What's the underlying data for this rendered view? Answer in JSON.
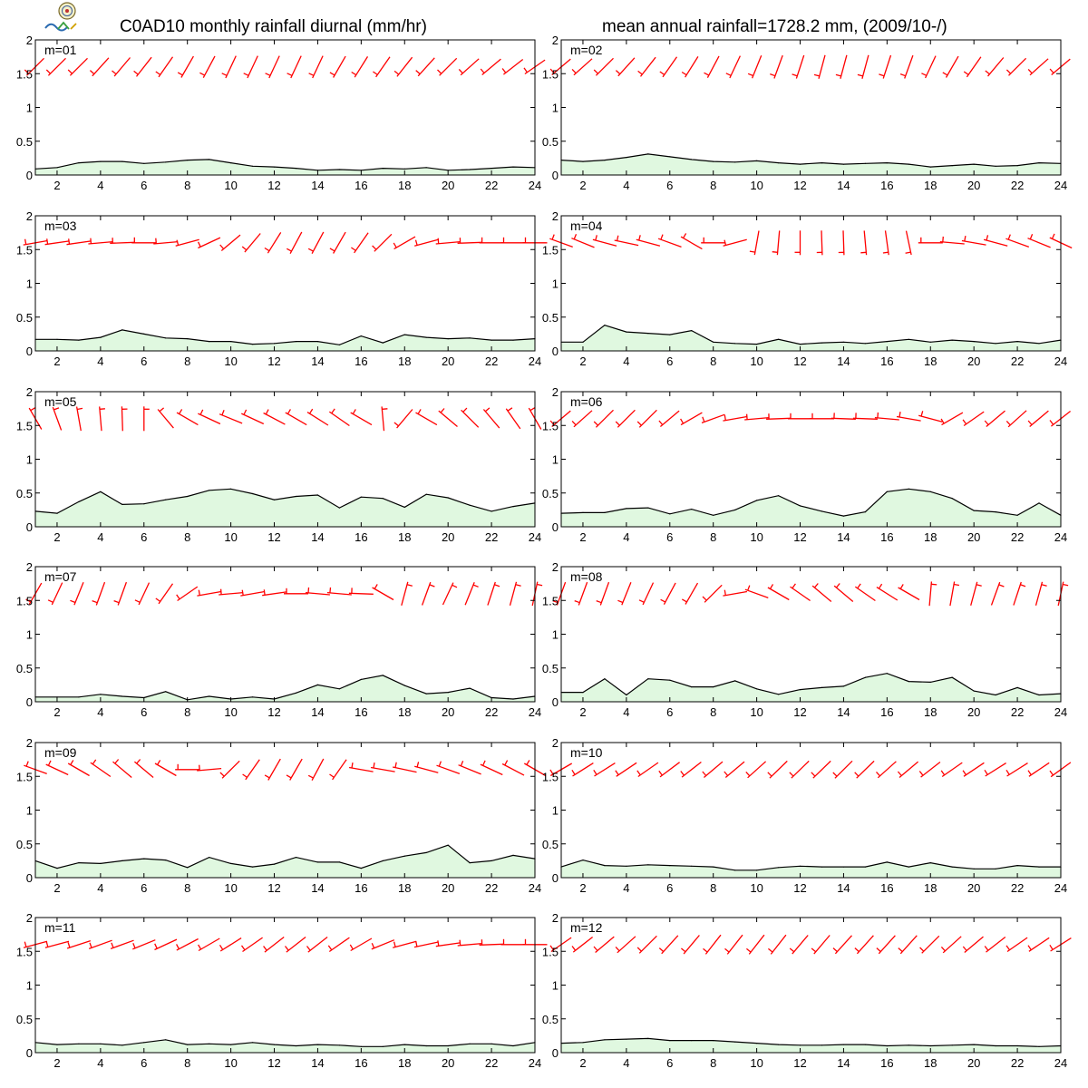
{
  "header": {
    "title_left": "C0AD10 monthly rainfall diurnal (mm/hr)",
    "title_right": "mean annual rainfall=1728.2 mm, (2009/10-/)"
  },
  "logo": {
    "icon": "lab-logo-icon"
  },
  "colors": {
    "rain_line": "#000000",
    "rain_fill": "#e0f8e0",
    "wind_barb": "#ff0000",
    "frame": "#000000"
  },
  "chart_data": {
    "type": "area",
    "x": [
      1,
      2,
      3,
      4,
      5,
      6,
      7,
      8,
      9,
      10,
      11,
      12,
      13,
      14,
      15,
      16,
      17,
      18,
      19,
      20,
      21,
      22,
      23,
      24
    ],
    "x_ticks": [
      2,
      4,
      6,
      8,
      10,
      12,
      14,
      16,
      18,
      20,
      22,
      24
    ],
    "xlim": [
      1,
      24
    ],
    "ylim": [
      0,
      2
    ],
    "y_ticks": [
      0,
      0.5,
      1,
      1.5,
      2
    ],
    "y_tick_labels": [
      "0",
      "0.5",
      "1",
      "1.5",
      "2"
    ],
    "wind_barb_baseline": 1.6,
    "wind_barb_note": "wind barbs drawn at y=1.6; dir in degrees (meteorological, from), barb_len in y-units",
    "panels": [
      {
        "label": "m=01",
        "rain": [
          0.09,
          0.11,
          0.18,
          0.2,
          0.2,
          0.17,
          0.19,
          0.22,
          0.23,
          0.18,
          0.13,
          0.12,
          0.1,
          0.07,
          0.08,
          0.07,
          0.1,
          0.09,
          0.11,
          0.07,
          0.08,
          0.1,
          0.12,
          0.11
        ],
        "wind": [
          225,
          225,
          225,
          222,
          220,
          218,
          215,
          210,
          208,
          205,
          205,
          205,
          205,
          205,
          210,
          212,
          215,
          218,
          222,
          225,
          228,
          230,
          232,
          235
        ]
      },
      {
        "label": "m=02",
        "rain": [
          0.22,
          0.2,
          0.22,
          0.26,
          0.31,
          0.27,
          0.23,
          0.2,
          0.19,
          0.21,
          0.18,
          0.16,
          0.18,
          0.16,
          0.17,
          0.18,
          0.16,
          0.12,
          0.14,
          0.16,
          0.13,
          0.14,
          0.18,
          0.17
        ],
        "wind": [
          230,
          228,
          225,
          222,
          218,
          215,
          212,
          208,
          205,
          202,
          200,
          198,
          195,
          195,
          195,
          198,
          200,
          205,
          210,
          215,
          220,
          225,
          228,
          230
        ]
      },
      {
        "label": "m=03",
        "rain": [
          0.17,
          0.17,
          0.16,
          0.2,
          0.31,
          0.25,
          0.19,
          0.18,
          0.14,
          0.14,
          0.1,
          0.11,
          0.14,
          0.14,
          0.09,
          0.22,
          0.12,
          0.24,
          0.2,
          0.18,
          0.19,
          0.16,
          0.16,
          0.18
        ],
        "wind": [
          260,
          262,
          262,
          265,
          268,
          270,
          265,
          255,
          245,
          230,
          220,
          212,
          208,
          208,
          210,
          215,
          225,
          240,
          255,
          265,
          268,
          270,
          270,
          270
        ]
      },
      {
        "label": "m=04",
        "rain": [
          0.13,
          0.13,
          0.38,
          0.28,
          0.26,
          0.24,
          0.3,
          0.13,
          0.11,
          0.1,
          0.17,
          0.1,
          0.12,
          0.13,
          0.11,
          0.14,
          0.17,
          0.13,
          0.16,
          0.14,
          0.11,
          0.14,
          0.11,
          0.16
        ],
        "wind": [
          290,
          292,
          285,
          282,
          285,
          290,
          300,
          270,
          255,
          190,
          185,
          180,
          178,
          178,
          175,
          172,
          168,
          270,
          275,
          280,
          285,
          290,
          292,
          295
        ]
      },
      {
        "label": "m=05",
        "rain": [
          0.23,
          0.2,
          0.37,
          0.52,
          0.33,
          0.34,
          0.4,
          0.45,
          0.54,
          0.56,
          0.49,
          0.4,
          0.45,
          0.47,
          0.28,
          0.44,
          0.42,
          0.29,
          0.48,
          0.43,
          0.32,
          0.23,
          0.3,
          0.35
        ],
        "wind": [
          330,
          340,
          350,
          355,
          358,
          360,
          320,
          300,
          295,
          292,
          295,
          298,
          300,
          302,
          305,
          300,
          355,
          220,
          300,
          310,
          315,
          320,
          325,
          330
        ]
      },
      {
        "label": "m=06",
        "rain": [
          0.2,
          0.21,
          0.21,
          0.27,
          0.28,
          0.19,
          0.26,
          0.17,
          0.25,
          0.39,
          0.46,
          0.31,
          0.23,
          0.16,
          0.22,
          0.52,
          0.56,
          0.52,
          0.42,
          0.24,
          0.22,
          0.17,
          0.35,
          0.17
        ],
        "wind": [
          230,
          228,
          225,
          225,
          225,
          230,
          240,
          250,
          260,
          265,
          268,
          270,
          270,
          272,
          272,
          275,
          280,
          285,
          240,
          235,
          230,
          228,
          230,
          232
        ]
      },
      {
        "label": "m=07",
        "rain": [
          0.07,
          0.07,
          0.07,
          0.11,
          0.08,
          0.06,
          0.15,
          0.03,
          0.08,
          0.04,
          0.07,
          0.04,
          0.13,
          0.25,
          0.19,
          0.33,
          0.39,
          0.24,
          0.12,
          0.14,
          0.2,
          0.06,
          0.04,
          0.08
        ],
        "wind": [
          210,
          205,
          202,
          200,
          200,
          205,
          215,
          235,
          260,
          265,
          260,
          262,
          270,
          275,
          275,
          272,
          300,
          15,
          20,
          25,
          22,
          18,
          15,
          12
        ]
      },
      {
        "label": "m=08",
        "rain": [
          0.14,
          0.14,
          0.34,
          0.1,
          0.34,
          0.32,
          0.22,
          0.22,
          0.31,
          0.19,
          0.11,
          0.18,
          0.21,
          0.23,
          0.36,
          0.42,
          0.3,
          0.29,
          0.36,
          0.16,
          0.1,
          0.21,
          0.1,
          0.12
        ],
        "wind": [
          200,
          200,
          200,
          202,
          205,
          208,
          210,
          225,
          260,
          290,
          300,
          305,
          310,
          310,
          305,
          302,
          300,
          5,
          10,
          15,
          20,
          18,
          15,
          12
        ]
      },
      {
        "label": "m=09",
        "rain": [
          0.25,
          0.14,
          0.22,
          0.21,
          0.25,
          0.28,
          0.26,
          0.15,
          0.3,
          0.21,
          0.16,
          0.2,
          0.3,
          0.23,
          0.23,
          0.14,
          0.25,
          0.32,
          0.37,
          0.48,
          0.22,
          0.25,
          0.33,
          0.28
        ],
        "wind": [
          290,
          295,
          300,
          305,
          310,
          310,
          300,
          270,
          265,
          225,
          215,
          210,
          210,
          208,
          215,
          280,
          280,
          282,
          285,
          290,
          292,
          295,
          298,
          300
        ]
      },
      {
        "label": "m=10",
        "rain": [
          0.16,
          0.26,
          0.18,
          0.17,
          0.19,
          0.18,
          0.17,
          0.16,
          0.11,
          0.11,
          0.15,
          0.17,
          0.16,
          0.16,
          0.16,
          0.23,
          0.16,
          0.22,
          0.16,
          0.13,
          0.13,
          0.18,
          0.16,
          0.16
        ],
        "wind": [
          240,
          238,
          238,
          236,
          235,
          233,
          232,
          230,
          230,
          228,
          226,
          226,
          226,
          225,
          226,
          228,
          230,
          232,
          235,
          236,
          238,
          238,
          236,
          234
        ]
      },
      {
        "label": "m=11",
        "rain": [
          0.15,
          0.12,
          0.13,
          0.13,
          0.11,
          0.15,
          0.19,
          0.12,
          0.13,
          0.12,
          0.15,
          0.12,
          0.1,
          0.12,
          0.11,
          0.09,
          0.09,
          0.12,
          0.1,
          0.1,
          0.13,
          0.13,
          0.1,
          0.15
        ],
        "wind": [
          255,
          255,
          252,
          250,
          250,
          248,
          245,
          242,
          240,
          238,
          235,
          232,
          232,
          232,
          235,
          240,
          248,
          255,
          258,
          262,
          265,
          268,
          270,
          270
        ]
      },
      {
        "label": "m=12",
        "rain": [
          0.14,
          0.15,
          0.19,
          0.2,
          0.21,
          0.18,
          0.18,
          0.18,
          0.16,
          0.14,
          0.12,
          0.11,
          0.11,
          0.12,
          0.12,
          0.1,
          0.11,
          0.1,
          0.11,
          0.12,
          0.1,
          0.1,
          0.09,
          0.1
        ],
        "wind": [
          235,
          232,
          230,
          228,
          225,
          222,
          220,
          218,
          218,
          218,
          218,
          220,
          220,
          222,
          222,
          222,
          222,
          225,
          228,
          230,
          232,
          235,
          236,
          238
        ]
      }
    ]
  }
}
